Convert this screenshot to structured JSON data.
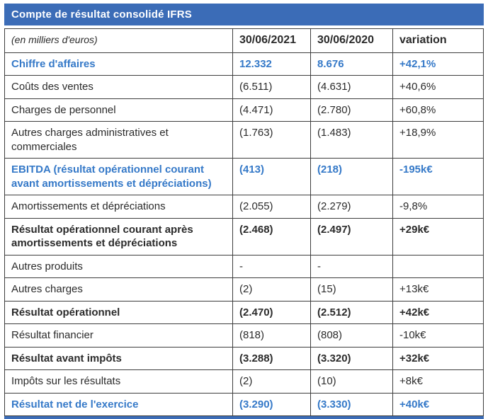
{
  "title": "Compte de résultat consolidé IFRS",
  "colors": {
    "header_bg": "#3b6cb7",
    "accent_blue": "#3579c8",
    "grid_border": "#3d3d3d"
  },
  "table": {
    "columns": [
      "(en milliers d'euros)",
      "30/06/2021",
      "30/06/2020",
      "variation"
    ],
    "rows": [
      {
        "label": "Chiffre d'affaires",
        "v2021": "12.332",
        "v2020": "8.676",
        "variation": "+42,1%",
        "style": "blue"
      },
      {
        "label": "Coûts des ventes",
        "v2021": "(6.511)",
        "v2020": "(4.631)",
        "variation": "+40,6%",
        "style": "normal"
      },
      {
        "label": "Charges de personnel",
        "v2021": "(4.471)",
        "v2020": "(2.780)",
        "variation": "+60,8%",
        "style": "normal"
      },
      {
        "label": "Autres charges administratives et commerciales",
        "v2021": "(1.763)",
        "v2020": "(1.483)",
        "variation": "+18,9%",
        "style": "normal"
      },
      {
        "label": "EBITDA (résultat opérationnel courant avant amortissements et dépréciations)",
        "v2021": "(413)",
        "v2020": "(218)",
        "variation": "-195k€",
        "style": "blue"
      },
      {
        "label": "Amortissements et dépréciations",
        "v2021": "(2.055)",
        "v2020": "(2.279)",
        "variation": "-9,8%",
        "style": "normal"
      },
      {
        "label": "Résultat opérationnel courant après amortissements et dépréciations",
        "v2021": "(2.468)",
        "v2020": "(2.497)",
        "variation": "+29k€",
        "style": "bold"
      },
      {
        "label": "Autres produits",
        "v2021": "-",
        "v2020": "-",
        "variation": "",
        "style": "normal"
      },
      {
        "label": "Autres charges",
        "v2021": "(2)",
        "v2020": "(15)",
        "variation": "+13k€",
        "style": "normal"
      },
      {
        "label": "Résultat opérationnel",
        "v2021": "(2.470)",
        "v2020": "(2.512)",
        "variation": "+42k€",
        "style": "bold"
      },
      {
        "label": "Résultat financier",
        "v2021": "(818)",
        "v2020": "(808)",
        "variation": "-10k€",
        "style": "normal"
      },
      {
        "label": "Résultat avant impôts",
        "v2021": "(3.288)",
        "v2020": "(3.320)",
        "variation": "+32k€",
        "style": "bold"
      },
      {
        "label": "Impôts sur les résultats",
        "v2021": "(2)",
        "v2020": "(10)",
        "variation": "+8k€",
        "style": "normal"
      },
      {
        "label": "Résultat net de l'exercice",
        "v2021": "(3.290)",
        "v2020": "(3.330)",
        "variation": "+40k€",
        "style": "blue"
      }
    ]
  }
}
